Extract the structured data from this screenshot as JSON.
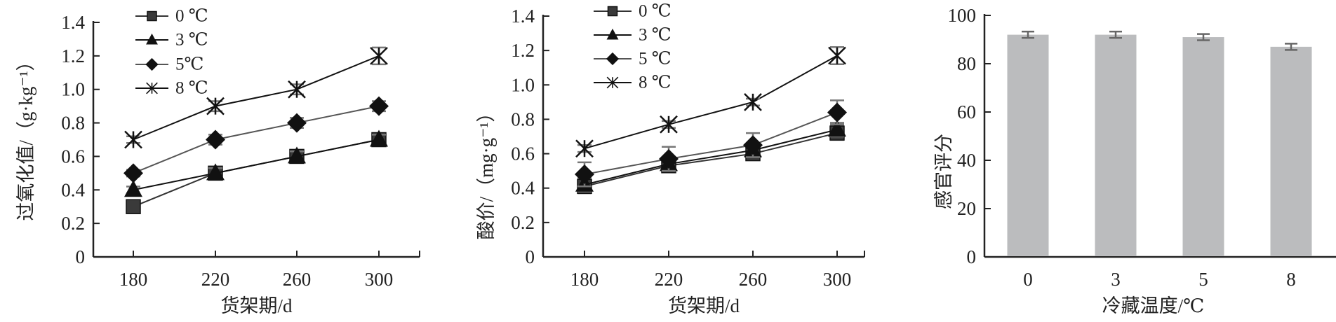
{
  "chart_data": [
    {
      "type": "line",
      "xlabel": "货架期/d",
      "ylabel": "过氧化值/（g·kg⁻¹）",
      "x": [
        180,
        220,
        260,
        300
      ],
      "x_ticks": [
        "180",
        "220",
        "260",
        "300"
      ],
      "ylim": [
        0,
        1.4
      ],
      "y_ticks": [
        "0",
        "0.2",
        "0.4",
        "0.6",
        "0.8",
        "1.0",
        "1.2",
        "1.4"
      ],
      "legend_position": "top-left",
      "series": [
        {
          "name": "0 ℃",
          "marker": "square",
          "color": "#333333",
          "values": [
            0.3,
            0.5,
            0.6,
            0.7
          ],
          "error": [
            0.02,
            0.03,
            0.03,
            0.03
          ]
        },
        {
          "name": "3 ℃",
          "marker": "triangle",
          "color": "#111111",
          "values": [
            0.4,
            0.5,
            0.6,
            0.7
          ],
          "error": [
            0.02,
            0.03,
            0.03,
            0.03
          ]
        },
        {
          "name": "5℃",
          "marker": "diamond",
          "color": "#555555",
          "values": [
            0.5,
            0.7,
            0.8,
            0.9
          ],
          "error": [
            0.02,
            0.03,
            0.03,
            0.03
          ]
        },
        {
          "name": "8 ℃",
          "marker": "asterisk",
          "color": "#111111",
          "values": [
            0.7,
            0.9,
            1.0,
            1.2
          ],
          "error": [
            0.02,
            0.03,
            0.03,
            0.05
          ]
        }
      ]
    },
    {
      "type": "line",
      "xlabel": "货架期/d",
      "ylabel": "酸价/（mg·g⁻¹）",
      "x": [
        180,
        220,
        260,
        300
      ],
      "x_ticks": [
        "180",
        "220",
        "260",
        "300"
      ],
      "ylim": [
        0,
        1.4
      ],
      "y_ticks": [
        "0",
        "0.2",
        "0.4",
        "0.6",
        "0.8",
        "1.0",
        "1.2",
        "1.4"
      ],
      "legend_position": "top-left",
      "series": [
        {
          "name": "0 ℃",
          "marker": "square",
          "color": "#333333",
          "values": [
            0.41,
            0.53,
            0.6,
            0.72
          ],
          "error": [
            0.04,
            0.03,
            0.03,
            0.04
          ]
        },
        {
          "name": "3 ℃",
          "marker": "triangle",
          "color": "#111111",
          "values": [
            0.42,
            0.54,
            0.62,
            0.74
          ],
          "error": [
            0.04,
            0.03,
            0.03,
            0.04
          ]
        },
        {
          "name": "5 ℃",
          "marker": "diamond",
          "color": "#555555",
          "values": [
            0.48,
            0.57,
            0.65,
            0.84
          ],
          "error": [
            0.07,
            0.07,
            0.07,
            0.07
          ]
        },
        {
          "name": "8 ℃",
          "marker": "asterisk",
          "color": "#111111",
          "values": [
            0.63,
            0.77,
            0.9,
            1.17
          ],
          "error": [
            0.02,
            0.02,
            0.02,
            0.05
          ]
        }
      ]
    },
    {
      "type": "bar",
      "xlabel": "冷藏温度/℃",
      "ylabel": "感官评分",
      "categories": [
        "0",
        "3",
        "5",
        "8"
      ],
      "values": [
        92,
        92,
        91,
        87
      ],
      "error": [
        1.3,
        1.3,
        1.3,
        1.3
      ],
      "ylim": [
        0,
        100
      ],
      "y_ticks": [
        "0",
        "20",
        "40",
        "60",
        "80",
        "100"
      ],
      "bar_color": "#bbbcbe",
      "error_color": "#666666"
    }
  ]
}
